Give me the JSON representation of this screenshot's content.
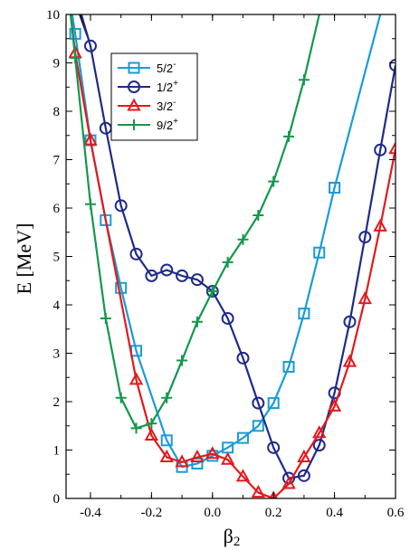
{
  "chart_data": {
    "type": "line",
    "xlabel_main": "β",
    "xlabel_sub": "2",
    "ylabel": "E [MeV]",
    "xlim": [
      -0.48,
      0.6
    ],
    "ylim": [
      0,
      10
    ],
    "x_ticks": [
      -0.4,
      -0.2,
      0.0,
      0.2,
      0.4,
      0.6
    ],
    "x_tick_labels": [
      "-0.4",
      "-0.2",
      "0.0",
      "0.2",
      "0.4",
      "0.6"
    ],
    "y_ticks": [
      0,
      1,
      2,
      3,
      4,
      5,
      6,
      7,
      8,
      9,
      10
    ],
    "y_tick_labels": [
      "0",
      "1",
      "2",
      "3",
      "4",
      "5",
      "6",
      "7",
      "8",
      "9",
      "10"
    ],
    "grid": false,
    "legend_position": "top-left",
    "series": [
      {
        "name": "5/2",
        "name_sup": "-",
        "color": "#1a9bd7",
        "marker": "square",
        "line_start": [
          -0.46,
          10.0
        ],
        "x": [
          -0.45,
          -0.4,
          -0.35,
          -0.3,
          -0.25,
          -0.15,
          -0.1,
          -0.05,
          0.0,
          0.05,
          0.1,
          0.15,
          0.2,
          0.25,
          0.3,
          0.35,
          0.4
        ],
        "y": [
          9.6,
          7.4,
          5.75,
          4.35,
          3.05,
          1.2,
          0.65,
          0.72,
          0.88,
          1.05,
          1.25,
          1.5,
          1.97,
          2.72,
          3.82,
          5.08,
          6.42
        ],
        "line_end": [
          0.55,
          10.0
        ]
      },
      {
        "name": "1/2",
        "name_sup": "+",
        "color": "#1f2a8a",
        "marker": "circle",
        "line_start": [
          -0.43,
          10.0
        ],
        "x": [
          -0.4,
          -0.35,
          -0.3,
          -0.25,
          -0.2,
          -0.15,
          -0.1,
          -0.05,
          0.0,
          0.05,
          0.1,
          0.15,
          0.2,
          0.25,
          0.3,
          0.35,
          0.4,
          0.45,
          0.5,
          0.55,
          0.6
        ],
        "y": [
          9.35,
          7.65,
          6.05,
          5.05,
          4.6,
          4.72,
          4.6,
          4.52,
          4.28,
          3.72,
          2.9,
          1.97,
          1.05,
          0.42,
          0.47,
          1.1,
          2.18,
          3.65,
          5.4,
          7.2,
          8.95
        ],
        "line_end": null
      },
      {
        "name": "3/2",
        "name_sup": "-",
        "color": "#e3191c",
        "marker": "triangle",
        "line_start": [
          -0.465,
          10.0
        ],
        "x": [
          -0.45,
          -0.4,
          -0.25,
          -0.2,
          -0.15,
          -0.1,
          -0.05,
          0.0,
          0.05,
          0.1,
          0.15,
          0.2,
          0.25,
          0.3,
          0.35,
          0.4,
          0.45,
          0.5,
          0.55,
          0.6
        ],
        "y": [
          9.2,
          7.4,
          2.45,
          1.3,
          0.85,
          0.75,
          0.85,
          0.92,
          0.8,
          0.45,
          0.12,
          0.0,
          0.3,
          0.85,
          1.35,
          1.9,
          2.82,
          4.12,
          5.62,
          7.22
        ],
        "line_end": null
      },
      {
        "name": "9/2",
        "name_sup": "+",
        "color": "#13984a",
        "marker": "plus",
        "line_start": [
          -0.465,
          10.0
        ],
        "x": [
          -0.45,
          -0.4,
          -0.35,
          -0.3,
          -0.25,
          -0.2,
          -0.15,
          -0.1,
          -0.05,
          0.0,
          0.05,
          0.1,
          0.15,
          0.2,
          0.25,
          0.3
        ],
        "y": [
          9.1,
          6.08,
          3.72,
          2.08,
          1.45,
          1.55,
          2.08,
          2.85,
          3.65,
          4.28,
          4.88,
          5.35,
          5.85,
          6.55,
          7.48,
          8.65
        ],
        "line_end": [
          0.35,
          10.0
        ]
      }
    ],
    "extra_lines": [
      {
        "color": "#000000",
        "x": [
          -0.435,
          -0.41
        ],
        "y": [
          10.0,
          9.55
        ]
      }
    ]
  }
}
